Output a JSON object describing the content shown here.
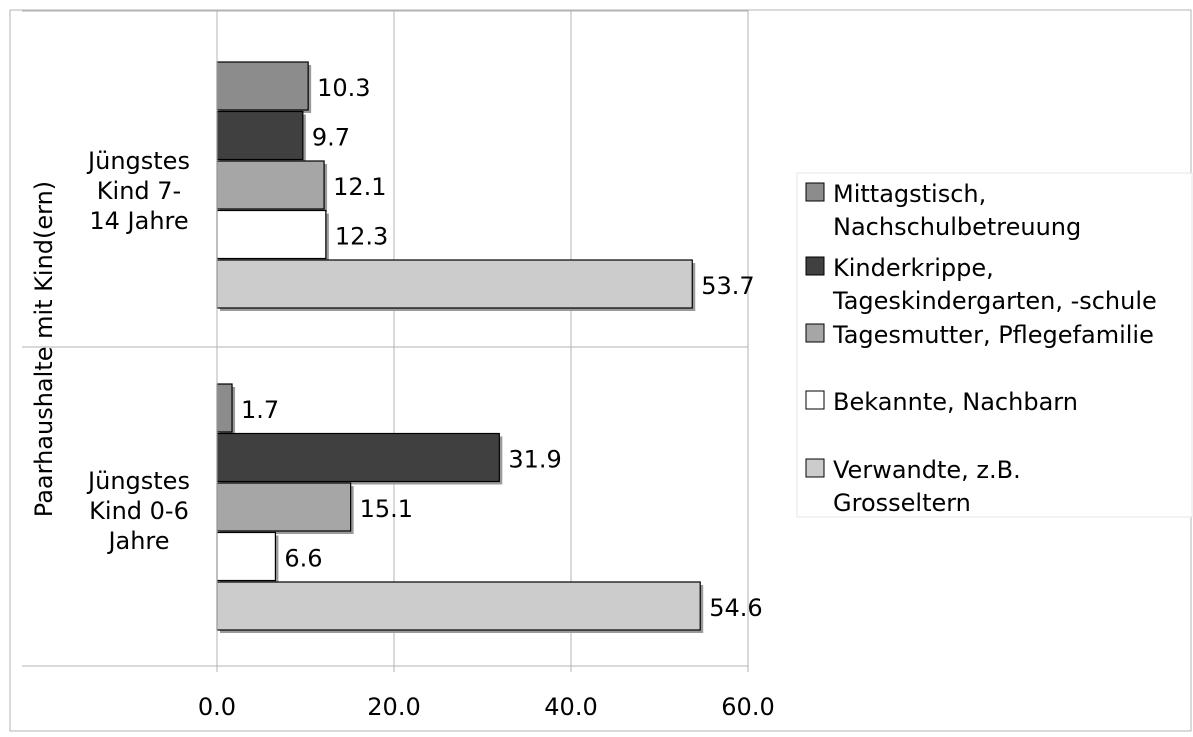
{
  "chart_data": {
    "type": "bar",
    "orientation": "horizontal",
    "title": "",
    "xlabel": "",
    "ylabel": "Paarhaushalte mit Kind(ern)",
    "xlim": [
      0,
      60
    ],
    "xticks": [
      "0.0",
      "20.0",
      "40.0",
      "60.0"
    ],
    "grid": "vertical",
    "legend": "right",
    "categories": [
      {
        "lines": [
          "Jüngstes",
          "Kind 7-",
          "14 Jahre"
        ]
      },
      {
        "lines": [
          "Jüngstes",
          "Kind 0-6",
          "Jahre"
        ]
      }
    ],
    "series": [
      {
        "name_lines": [
          "Mittagstisch,",
          "Nachschulbetreuung"
        ],
        "color": "#8c8c8c",
        "values": [
          10.3,
          1.7
        ],
        "labels": [
          "10.3",
          "1.7"
        ]
      },
      {
        "name_lines": [
          "Kinderkrippe,",
          "Tageskindergarten, -schule"
        ],
        "color": "#404040",
        "values": [
          9.7,
          31.9
        ],
        "labels": [
          "9.7",
          "31.9"
        ]
      },
      {
        "name_lines": [
          "Tagesmutter, Pflegefamilie"
        ],
        "color": "#a6a6a6",
        "values": [
          12.1,
          15.1
        ],
        "labels": [
          "12.1",
          "15.1"
        ]
      },
      {
        "name_lines": [
          "Bekannte, Nachbarn"
        ],
        "color": "#ffffff",
        "values": [
          12.3,
          6.6
        ],
        "labels": [
          "12.3",
          "6.6"
        ]
      },
      {
        "name_lines": [
          "Verwandte, z.B.",
          "Grosseltern"
        ],
        "color": "#cccccc",
        "values": [
          53.7,
          54.6
        ],
        "labels": [
          "53.7",
          "54.6"
        ]
      }
    ]
  }
}
